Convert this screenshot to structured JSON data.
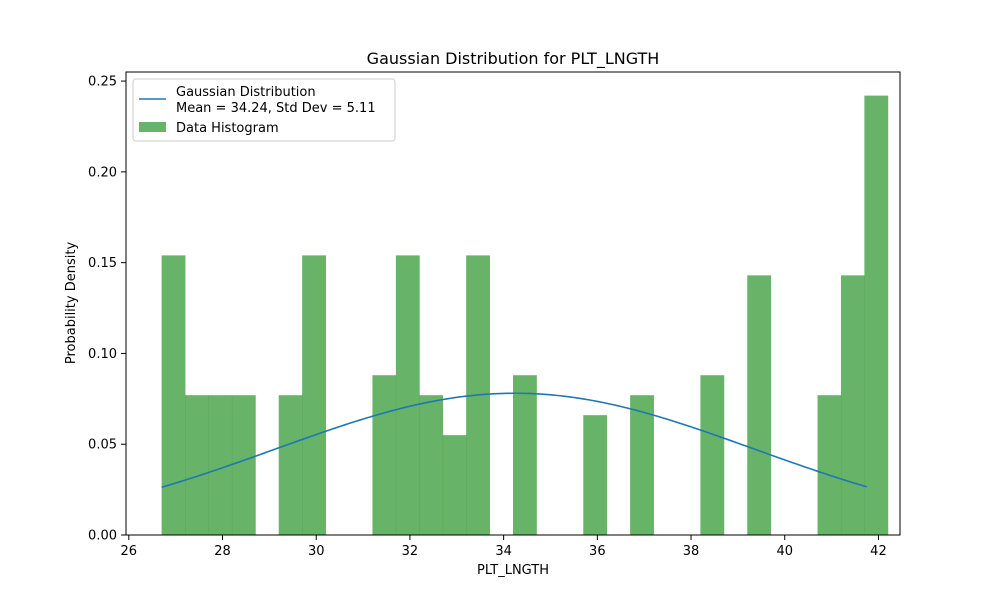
{
  "chart_data": {
    "type": "bar",
    "title": "Gaussian Distribution for PLT_LNGTH",
    "xlabel": "PLT_LNGTH",
    "ylabel": "Probability Density",
    "xlim": [
      25.94,
      42.46
    ],
    "ylim": [
      0,
      0.255
    ],
    "xticks": [
      "26",
      "28",
      "30",
      "32",
      "34",
      "36",
      "38",
      "40",
      "42"
    ],
    "yticks": [
      "0.00",
      "0.05",
      "0.10",
      "0.15",
      "0.20",
      "0.25"
    ],
    "grid": false,
    "legend_position": "top-left",
    "colors": {
      "histogram": "#4ca64c",
      "line": "#1f77b4"
    },
    "histogram": {
      "name": "Data Histogram",
      "bin_start": 26.7,
      "bin_width": 0.5,
      "densities": [
        0.154,
        0.077,
        0.077,
        0.077,
        0,
        0.077,
        0.154,
        0,
        0,
        0.088,
        0.154,
        0.077,
        0.055,
        0.154,
        0,
        0.088,
        0,
        0,
        0.066,
        0,
        0.077,
        0,
        0,
        0.088,
        0,
        0.143,
        0,
        0,
        0.077,
        0.143,
        0.242
      ]
    },
    "gaussian": {
      "name_line1": "Gaussian Distribution",
      "name_line2": "Mean = 34.24, Std Dev = 5.11",
      "mean": 34.24,
      "std": 5.11,
      "x_range": [
        26.7,
        41.75
      ]
    }
  }
}
